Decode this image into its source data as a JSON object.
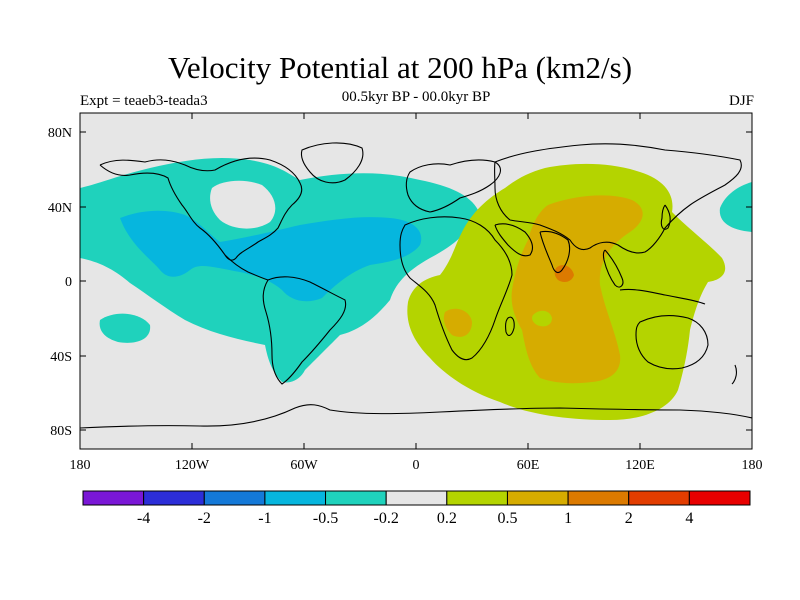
{
  "header": {
    "title": "Velocity Potential at 200 hPa (km2/s)",
    "left_string": "Expt = teaeb3-teada3",
    "center_string": "00.5kyr BP - 00.0kyr BP",
    "right_string": "DJF"
  },
  "map": {
    "projection": "cylindrical equidistant",
    "lon_range": [
      -180,
      180
    ],
    "lat_range": [
      -90,
      90
    ],
    "lat_labels": [
      "80N",
      "40N",
      "0",
      "40S",
      "80S"
    ],
    "lon_labels": [
      "180",
      "120W",
      "60W",
      "0",
      "60E",
      "120E",
      "180"
    ],
    "background_color": "#e6e6e6"
  },
  "colorbar": {
    "colors": [
      "#7a17d6",
      "#2c2ed8",
      "#1479d8",
      "#06b6de",
      "#1fd2bc",
      "#e6e6e6",
      "#b4d400",
      "#d6ac00",
      "#dc7a00",
      "#e23d00",
      "#e80000"
    ],
    "labels": [
      "-4",
      "-2",
      "-1",
      "-0.5",
      "-0.2",
      "0.2",
      "0.5",
      "1",
      "2",
      "4"
    ]
  }
}
